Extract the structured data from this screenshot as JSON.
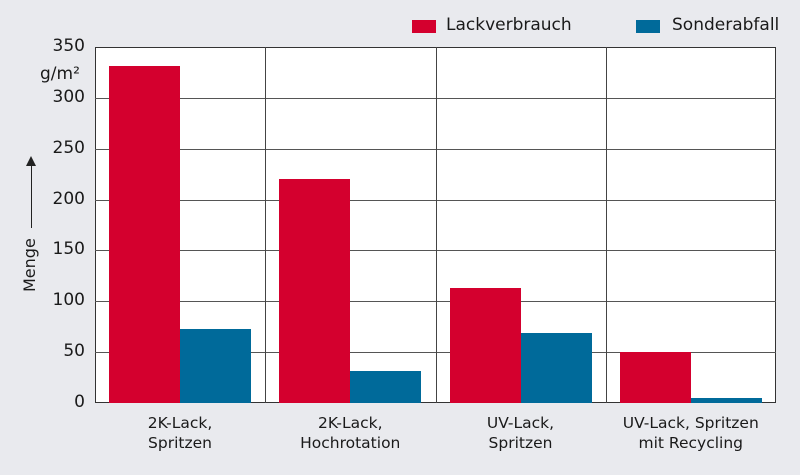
{
  "chart_data": {
    "type": "bar",
    "title": "",
    "xlabel": "",
    "ylabel": "Menge",
    "yunit": "g/m²",
    "ylim": [
      0,
      350
    ],
    "yticks": [
      0,
      50,
      100,
      150,
      200,
      250,
      300,
      350
    ],
    "grid": true,
    "legend_position": "top-right",
    "categories": [
      "2K-Lack, Spritzen",
      "2K-Lack, Hochrotation",
      "UV-Lack, Spritzen",
      "UV-Lack, Spritzen mit Recycling"
    ],
    "series": [
      {
        "name": "Lackverbrauch",
        "color": "#d4002e",
        "values": [
          331,
          220,
          113,
          50
        ]
      },
      {
        "name": "Sonderabfall",
        "color": "#006a9a",
        "values": [
          73,
          31,
          69,
          5
        ]
      }
    ]
  },
  "legend": {
    "items": [
      {
        "label": "Lackverbrauch",
        "color": "#d4002e"
      },
      {
        "label": "Sonderabfall",
        "color": "#006a9a"
      }
    ]
  },
  "axis": {
    "y_label": "Menge",
    "y_unit": "g/m²",
    "y_ticks": [
      "0",
      "50",
      "100",
      "150",
      "200",
      "250",
      "300",
      "350"
    ],
    "x_labels": [
      {
        "line1": "2K-Lack,",
        "line2": "Spritzen"
      },
      {
        "line1": "2K-Lack,",
        "line2": "Hochrotation"
      },
      {
        "line1": "UV-Lack,",
        "line2": "Spritzen"
      },
      {
        "line1": "UV-Lack, Spritzen",
        "line2": "mit Recycling"
      }
    ]
  }
}
